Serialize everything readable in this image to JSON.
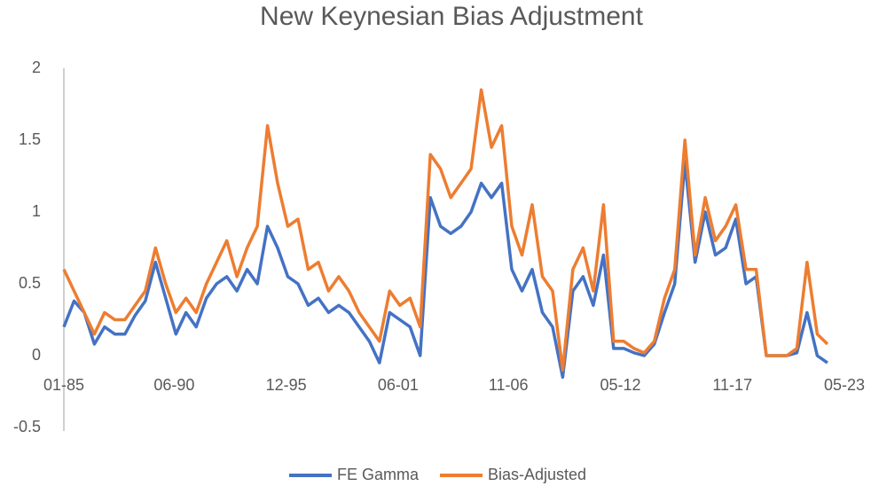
{
  "chart_data": {
    "type": "line",
    "title": "New Keynesian Bias Adjustment",
    "x": [
      1985.0,
      1985.5,
      1986.0,
      1986.5,
      1987.0,
      1987.5,
      1988.0,
      1988.5,
      1989.0,
      1989.5,
      1990.0,
      1990.5,
      1991.0,
      1991.5,
      1992.0,
      1992.5,
      1993.0,
      1993.5,
      1994.0,
      1994.5,
      1995.0,
      1995.5,
      1996.0,
      1996.5,
      1997.0,
      1997.5,
      1998.0,
      1998.5,
      1999.0,
      1999.5,
      2000.0,
      2000.5,
      2001.0,
      2001.5,
      2002.0,
      2002.5,
      2003.0,
      2003.5,
      2004.0,
      2004.5,
      2005.0,
      2005.5,
      2006.0,
      2006.5,
      2007.0,
      2007.5,
      2008.0,
      2008.5,
      2009.0,
      2009.5,
      2010.0,
      2010.5,
      2011.0,
      2011.5,
      2012.0,
      2012.5,
      2013.0,
      2013.5,
      2014.0,
      2014.5,
      2015.0,
      2015.5,
      2016.0,
      2016.5,
      2017.0,
      2017.5,
      2018.0,
      2018.5,
      2019.0,
      2019.5,
      2020.0,
      2020.5,
      2021.0,
      2021.5,
      2022.0,
      2022.5
    ],
    "series": [
      {
        "name": "FE Gamma",
        "color": "#4472c4",
        "values": [
          0.2,
          0.38,
          0.3,
          0.08,
          0.2,
          0.15,
          0.15,
          0.28,
          0.38,
          0.65,
          0.4,
          0.15,
          0.3,
          0.2,
          0.4,
          0.5,
          0.55,
          0.45,
          0.6,
          0.5,
          0.9,
          0.75,
          0.55,
          0.5,
          0.35,
          0.4,
          0.3,
          0.35,
          0.3,
          0.2,
          0.1,
          -0.05,
          0.3,
          0.25,
          0.2,
          0.0,
          1.1,
          0.9,
          0.85,
          0.9,
          1.0,
          1.2,
          1.1,
          1.2,
          0.6,
          0.45,
          0.6,
          0.3,
          0.2,
          -0.15,
          0.45,
          0.55,
          0.35,
          0.7,
          0.05,
          0.05,
          0.02,
          0.0,
          0.08,
          0.3,
          0.5,
          1.35,
          0.65,
          1.0,
          0.7,
          0.75,
          0.95,
          0.5,
          0.55,
          0.0,
          0.0,
          0.0,
          0.02,
          0.3,
          0.0,
          -0.05
        ]
      },
      {
        "name": "Bias-Adjusted",
        "color": "#ed7d31",
        "values": [
          0.6,
          0.45,
          0.3,
          0.15,
          0.3,
          0.25,
          0.25,
          0.35,
          0.45,
          0.75,
          0.5,
          0.3,
          0.4,
          0.3,
          0.5,
          0.65,
          0.8,
          0.55,
          0.75,
          0.9,
          1.6,
          1.2,
          0.9,
          0.95,
          0.6,
          0.65,
          0.45,
          0.55,
          0.45,
          0.3,
          0.2,
          0.1,
          0.45,
          0.35,
          0.4,
          0.2,
          1.4,
          1.3,
          1.1,
          1.2,
          1.3,
          1.85,
          1.45,
          1.6,
          0.9,
          0.7,
          1.05,
          0.55,
          0.45,
          -0.1,
          0.6,
          0.75,
          0.45,
          1.05,
          0.1,
          0.1,
          0.05,
          0.02,
          0.1,
          0.4,
          0.6,
          1.5,
          0.7,
          1.1,
          0.8,
          0.9,
          1.05,
          0.6,
          0.6,
          0.0,
          0.0,
          0.0,
          0.05,
          0.65,
          0.15,
          0.08
        ]
      }
    ],
    "xlim": [
      1985.0,
      2023.333
    ],
    "xticks": [
      {
        "value": 1985.0,
        "label": "01-85"
      },
      {
        "value": 1990.417,
        "label": "06-90"
      },
      {
        "value": 1995.917,
        "label": "12-95"
      },
      {
        "value": 2001.417,
        "label": "06-01"
      },
      {
        "value": 2006.833,
        "label": "11-06"
      },
      {
        "value": 2012.333,
        "label": "05-12"
      },
      {
        "value": 2017.833,
        "label": "11-17"
      },
      {
        "value": 2023.333,
        "label": "05-23"
      }
    ],
    "ylim": [
      -0.5,
      2
    ],
    "yticks": [
      -0.5,
      0,
      0.5,
      1,
      1.5,
      2
    ],
    "grid": false,
    "legend": "bottom"
  }
}
